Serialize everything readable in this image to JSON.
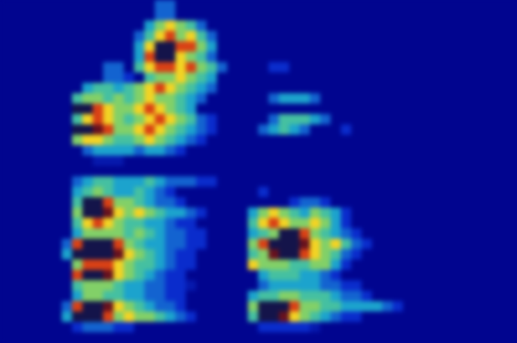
{
  "chart_data": {
    "type": "heatmap",
    "tick_labels": false,
    "xlim": [
      0,
      50
    ],
    "ylim": [
      0,
      33
    ],
    "zlim": [
      0,
      10
    ],
    "z": [
      [
        0,
        0,
        0,
        0,
        0,
        0,
        0,
        0,
        0,
        0,
        0,
        0,
        0,
        0,
        0,
        3,
        3,
        0,
        0,
        0,
        0,
        0,
        0,
        0,
        0,
        0,
        0,
        0,
        0,
        0,
        0,
        0,
        0,
        0,
        0,
        0,
        0,
        0,
        0,
        0,
        0,
        0,
        0,
        0,
        0,
        0,
        0,
        0,
        0,
        0
      ],
      [
        0,
        0,
        0,
        0,
        0,
        0,
        0,
        0,
        0,
        0,
        0,
        0,
        0,
        0,
        0,
        3,
        3,
        0,
        0,
        0,
        0,
        0,
        0,
        0,
        0,
        0,
        0,
        0,
        0,
        0,
        0,
        0,
        0,
        0,
        0,
        0,
        0,
        0,
        0,
        0,
        0,
        0,
        0,
        0,
        0,
        0,
        0,
        0,
        0,
        0
      ],
      [
        0,
        0,
        0,
        0,
        0,
        0,
        0,
        0,
        0,
        0,
        0,
        0,
        0,
        0,
        4,
        6,
        7,
        6,
        5,
        3,
        0,
        0,
        0,
        0,
        0,
        0,
        0,
        0,
        0,
        0,
        0,
        0,
        0,
        0,
        0,
        0,
        0,
        0,
        0,
        0,
        0,
        0,
        0,
        0,
        0,
        0,
        0,
        0,
        0,
        0
      ],
      [
        0,
        0,
        0,
        0,
        0,
        0,
        0,
        0,
        0,
        0,
        0,
        0,
        0,
        3,
        5,
        7,
        8,
        6,
        7,
        5,
        3,
        0,
        0,
        0,
        0,
        0,
        0,
        0,
        0,
        0,
        0,
        0,
        0,
        0,
        0,
        0,
        0,
        0,
        0,
        0,
        0,
        0,
        0,
        0,
        0,
        0,
        0,
        0,
        0,
        0
      ],
      [
        0,
        0,
        0,
        0,
        0,
        0,
        0,
        0,
        0,
        0,
        0,
        0,
        0,
        4,
        7,
        10,
        10,
        8,
        8,
        6,
        4,
        0,
        0,
        0,
        0,
        0,
        0,
        0,
        0,
        0,
        0,
        0,
        0,
        0,
        0,
        0,
        0,
        0,
        0,
        0,
        0,
        0,
        0,
        0,
        0,
        0,
        0,
        0,
        0,
        0
      ],
      [
        0,
        0,
        0,
        0,
        0,
        0,
        0,
        0,
        0,
        0,
        0,
        0,
        0,
        4,
        8,
        10,
        10,
        7,
        6,
        5,
        3,
        0,
        0,
        0,
        0,
        0,
        0,
        0,
        0,
        0,
        0,
        0,
        0,
        0,
        0,
        0,
        0,
        0,
        0,
        0,
        0,
        0,
        0,
        0,
        0,
        0,
        0,
        0,
        0,
        0
      ],
      [
        0,
        0,
        0,
        0,
        0,
        0,
        0,
        0,
        0,
        0,
        3,
        3,
        0,
        5,
        7,
        8,
        8,
        7,
        8,
        6,
        5,
        3,
        0,
        0,
        0,
        0,
        2,
        2,
        0,
        0,
        0,
        0,
        0,
        0,
        0,
        0,
        0,
        0,
        0,
        0,
        0,
        0,
        0,
        0,
        0,
        0,
        0,
        0,
        0,
        0
      ],
      [
        0,
        0,
        0,
        0,
        0,
        0,
        0,
        0,
        0,
        0,
        3,
        3,
        2,
        0,
        5,
        6,
        6,
        7,
        6,
        5,
        4,
        0,
        0,
        0,
        0,
        0,
        0,
        0,
        0,
        0,
        0,
        0,
        0,
        0,
        0,
        0,
        0,
        0,
        0,
        0,
        0,
        0,
        0,
        0,
        0,
        0,
        0,
        0,
        0,
        0
      ],
      [
        0,
        0,
        0,
        0,
        0,
        0,
        0,
        0,
        4,
        5,
        5,
        4,
        5,
        6,
        7,
        8,
        7,
        6,
        5,
        4,
        3,
        0,
        0,
        0,
        0,
        0,
        0,
        0,
        0,
        0,
        0,
        0,
        0,
        0,
        0,
        0,
        0,
        0,
        0,
        0,
        0,
        0,
        0,
        0,
        0,
        0,
        0,
        0,
        0,
        0
      ],
      [
        0,
        0,
        0,
        0,
        0,
        0,
        0,
        5,
        6,
        6,
        5,
        6,
        5,
        6,
        7,
        6,
        6,
        5,
        4,
        3,
        0,
        0,
        0,
        0,
        0,
        0,
        3,
        4,
        4,
        4,
        3,
        0,
        0,
        0,
        0,
        0,
        0,
        0,
        0,
        0,
        0,
        0,
        0,
        0,
        0,
        0,
        0,
        0,
        0,
        0
      ],
      [
        0,
        0,
        0,
        0,
        0,
        0,
        0,
        10,
        10,
        8,
        7,
        6,
        6,
        7,
        8,
        7,
        6,
        5,
        4,
        0,
        0,
        0,
        0,
        0,
        0,
        0,
        0,
        0,
        0,
        0,
        0,
        0,
        0,
        0,
        0,
        0,
        0,
        0,
        0,
        0,
        0,
        0,
        0,
        0,
        0,
        0,
        0,
        0,
        0,
        0
      ],
      [
        0,
        0,
        0,
        0,
        0,
        0,
        0,
        5,
        7,
        8,
        7,
        6,
        5,
        6,
        7,
        8,
        7,
        6,
        5,
        3,
        2,
        0,
        0,
        0,
        0,
        0,
        3,
        5,
        5,
        5,
        4,
        3,
        0,
        0,
        0,
        0,
        0,
        0,
        0,
        0,
        0,
        0,
        0,
        0,
        0,
        0,
        0,
        0,
        0,
        0
      ],
      [
        0,
        0,
        0,
        0,
        0,
        0,
        0,
        10,
        10,
        9,
        8,
        6,
        6,
        7,
        8,
        7,
        6,
        5,
        4,
        3,
        2,
        0,
        0,
        0,
        0,
        3,
        4,
        5,
        4,
        3,
        0,
        0,
        0,
        2,
        0,
        0,
        0,
        0,
        0,
        0,
        0,
        0,
        0,
        0,
        0,
        0,
        0,
        0,
        0,
        0
      ],
      [
        0,
        0,
        0,
        0,
        0,
        0,
        0,
        6,
        7,
        7,
        6,
        5,
        5,
        6,
        7,
        6,
        5,
        4,
        3,
        2,
        0,
        0,
        0,
        0,
        0,
        0,
        0,
        0,
        0,
        0,
        0,
        0,
        0,
        0,
        0,
        0,
        0,
        0,
        0,
        0,
        0,
        0,
        0,
        0,
        0,
        0,
        0,
        0,
        0,
        0
      ],
      [
        0,
        0,
        0,
        0,
        0,
        0,
        0,
        0,
        3,
        4,
        4,
        4,
        4,
        3,
        4,
        4,
        3,
        2,
        0,
        0,
        0,
        0,
        0,
        0,
        0,
        0,
        0,
        0,
        0,
        0,
        0,
        0,
        0,
        0,
        0,
        0,
        0,
        0,
        0,
        0,
        0,
        0,
        0,
        0,
        0,
        0,
        0,
        0,
        0,
        0
      ],
      [
        0,
        0,
        0,
        0,
        0,
        0,
        0,
        0,
        0,
        1,
        1,
        1,
        0,
        0,
        0,
        0,
        0,
        0,
        0,
        0,
        0,
        0,
        0,
        0,
        0,
        0,
        0,
        0,
        0,
        0,
        0,
        0,
        0,
        0,
        0,
        0,
        0,
        0,
        0,
        0,
        0,
        0,
        0,
        0,
        0,
        0,
        0,
        0,
        0,
        0
      ],
      [
        0,
        0,
        0,
        0,
        0,
        0,
        0,
        0,
        0,
        0,
        0,
        0,
        0,
        0,
        0,
        0,
        0,
        0,
        0,
        0,
        0,
        0,
        0,
        0,
        0,
        0,
        0,
        0,
        0,
        0,
        0,
        0,
        0,
        0,
        0,
        0,
        0,
        0,
        0,
        0,
        0,
        0,
        0,
        0,
        0,
        0,
        0,
        0,
        0,
        0
      ],
      [
        0,
        0,
        0,
        0,
        0,
        0,
        0,
        3,
        4,
        5,
        5,
        4,
        4,
        4,
        5,
        4,
        3,
        3,
        3,
        2,
        2,
        0,
        0,
        0,
        0,
        0,
        0,
        0,
        0,
        0,
        0,
        0,
        0,
        0,
        0,
        0,
        0,
        0,
        0,
        0,
        0,
        0,
        0,
        0,
        0,
        0,
        0,
        0,
        0,
        0
      ],
      [
        0,
        0,
        0,
        0,
        0,
        0,
        0,
        4,
        5,
        6,
        5,
        4,
        4,
        5,
        4,
        3,
        2,
        0,
        0,
        0,
        0,
        0,
        0,
        0,
        0,
        2,
        0,
        0,
        0,
        0,
        0,
        0,
        0,
        0,
        0,
        0,
        0,
        0,
        0,
        0,
        0,
        0,
        0,
        0,
        0,
        0,
        0,
        0,
        0,
        0
      ],
      [
        0,
        0,
        0,
        0,
        0,
        0,
        0,
        5,
        10,
        10,
        8,
        6,
        6,
        5,
        4,
        3,
        3,
        2,
        0,
        0,
        0,
        0,
        0,
        0,
        0,
        0,
        0,
        0,
        2,
        3,
        3,
        2,
        0,
        0,
        0,
        0,
        0,
        0,
        0,
        0,
        0,
        0,
        0,
        0,
        0,
        0,
        0,
        0,
        0,
        0
      ],
      [
        0,
        0,
        0,
        0,
        0,
        0,
        0,
        6,
        10,
        10,
        9,
        7,
        6,
        7,
        6,
        5,
        4,
        4,
        3,
        2,
        0,
        0,
        0,
        0,
        4,
        6,
        7,
        6,
        5,
        4,
        6,
        5,
        4,
        2,
        0,
        0,
        0,
        0,
        0,
        0,
        0,
        0,
        0,
        0,
        0,
        0,
        0,
        0,
        0,
        0
      ],
      [
        0,
        0,
        0,
        0,
        0,
        0,
        0,
        5,
        7,
        8,
        7,
        6,
        5,
        5,
        4,
        4,
        3,
        2,
        2,
        0,
        0,
        0,
        0,
        0,
        5,
        7,
        8,
        7,
        6,
        6,
        7,
        6,
        4,
        2,
        0,
        0,
        0,
        0,
        0,
        0,
        0,
        0,
        0,
        0,
        0,
        0,
        0,
        0,
        0,
        0
      ],
      [
        0,
        0,
        0,
        0,
        0,
        0,
        0,
        4,
        6,
        6,
        6,
        6,
        5,
        6,
        5,
        4,
        3,
        3,
        2,
        2,
        0,
        0,
        0,
        0,
        4,
        5,
        6,
        10,
        10,
        8,
        6,
        5,
        4,
        3,
        2,
        0,
        0,
        0,
        0,
        0,
        0,
        0,
        0,
        0,
        0,
        0,
        0,
        0,
        0,
        0
      ],
      [
        0,
        0,
        0,
        0,
        0,
        0,
        3,
        8,
        10,
        10,
        10,
        8,
        6,
        5,
        4,
        4,
        3,
        3,
        2,
        2,
        0,
        0,
        0,
        0,
        6,
        8,
        10,
        10,
        10,
        9,
        7,
        6,
        7,
        5,
        3,
        2,
        0,
        0,
        0,
        0,
        0,
        0,
        0,
        0,
        0,
        0,
        0,
        0,
        0,
        0
      ],
      [
        0,
        0,
        0,
        0,
        0,
        0,
        4,
        10,
        10,
        10,
        10,
        9,
        7,
        6,
        5,
        4,
        3,
        2,
        2,
        0,
        0,
        0,
        0,
        0,
        5,
        6,
        9,
        10,
        10,
        8,
        7,
        6,
        5,
        3,
        2,
        0,
        0,
        0,
        0,
        0,
        0,
        0,
        0,
        0,
        0,
        0,
        0,
        0,
        0,
        0
      ],
      [
        0,
        0,
        0,
        0,
        0,
        0,
        0,
        6,
        8,
        8,
        8,
        7,
        6,
        5,
        5,
        4,
        3,
        2,
        2,
        0,
        0,
        0,
        0,
        0,
        7,
        6,
        6,
        6,
        5,
        5,
        6,
        6,
        4,
        2,
        0,
        0,
        0,
        0,
        0,
        0,
        0,
        0,
        0,
        0,
        0,
        0,
        0,
        0,
        0,
        0
      ],
      [
        0,
        0,
        0,
        0,
        0,
        0,
        0,
        8,
        10,
        10,
        9,
        7,
        6,
        5,
        4,
        3,
        2,
        2,
        0,
        0,
        0,
        0,
        0,
        0,
        0,
        4,
        5,
        5,
        5,
        4,
        4,
        3,
        2,
        0,
        0,
        0,
        0,
        0,
        0,
        0,
        0,
        0,
        0,
        0,
        0,
        0,
        0,
        0,
        0,
        0
      ],
      [
        0,
        0,
        0,
        0,
        0,
        0,
        0,
        5,
        6,
        6,
        6,
        5,
        4,
        4,
        3,
        3,
        2,
        2,
        1,
        0,
        0,
        0,
        0,
        0,
        0,
        3,
        4,
        4,
        4,
        4,
        4,
        3,
        3,
        2,
        2,
        0,
        0,
        0,
        0,
        0,
        0,
        0,
        0,
        0,
        0,
        0,
        0,
        0,
        0,
        0
      ],
      [
        0,
        0,
        0,
        0,
        0,
        0,
        0,
        4,
        6,
        6,
        5,
        5,
        4,
        4,
        3,
        3,
        2,
        2,
        0,
        0,
        0,
        0,
        0,
        0,
        4,
        5,
        5,
        6,
        6,
        5,
        5,
        5,
        4,
        3,
        3,
        2,
        0,
        0,
        0,
        0,
        0,
        0,
        0,
        0,
        0,
        0,
        0,
        0,
        0,
        0
      ],
      [
        0,
        0,
        0,
        0,
        0,
        0,
        3,
        8,
        10,
        10,
        9,
        7,
        6,
        5,
        4,
        3,
        3,
        2,
        0,
        0,
        0,
        0,
        0,
        0,
        6,
        10,
        10,
        10,
        8,
        6,
        6,
        5,
        5,
        4,
        4,
        4,
        4,
        3,
        2,
        0,
        0,
        0,
        0,
        0,
        0,
        0,
        0,
        0,
        0,
        0
      ],
      [
        0,
        0,
        0,
        0,
        0,
        0,
        4,
        10,
        10,
        10,
        8,
        6,
        7,
        6,
        6,
        5,
        4,
        3,
        2,
        0,
        0,
        0,
        0,
        0,
        5,
        10,
        10,
        9,
        7,
        6,
        5,
        4,
        3,
        2,
        2,
        0,
        0,
        0,
        0,
        0,
        0,
        0,
        0,
        0,
        0,
        0,
        0,
        0,
        0,
        0
      ],
      [
        0,
        0,
        0,
        0,
        0,
        0,
        0,
        2,
        3,
        3,
        3,
        2,
        2,
        0,
        0,
        0,
        0,
        0,
        0,
        0,
        0,
        0,
        0,
        0,
        0,
        2,
        2,
        2,
        2,
        2,
        1,
        0,
        0,
        0,
        0,
        0,
        0,
        0,
        0,
        0,
        0,
        0,
        0,
        0,
        0,
        0,
        0,
        0,
        0,
        0
      ],
      [
        0,
        0,
        0,
        0,
        0,
        0,
        0,
        0,
        0,
        0,
        0,
        0,
        0,
        0,
        0,
        0,
        0,
        0,
        0,
        0,
        0,
        0,
        0,
        0,
        0,
        0,
        0,
        0,
        0,
        0,
        0,
        0,
        0,
        0,
        0,
        0,
        0,
        0,
        0,
        0,
        0,
        0,
        0,
        0,
        0,
        0,
        0,
        0,
        0,
        0
      ]
    ]
  }
}
